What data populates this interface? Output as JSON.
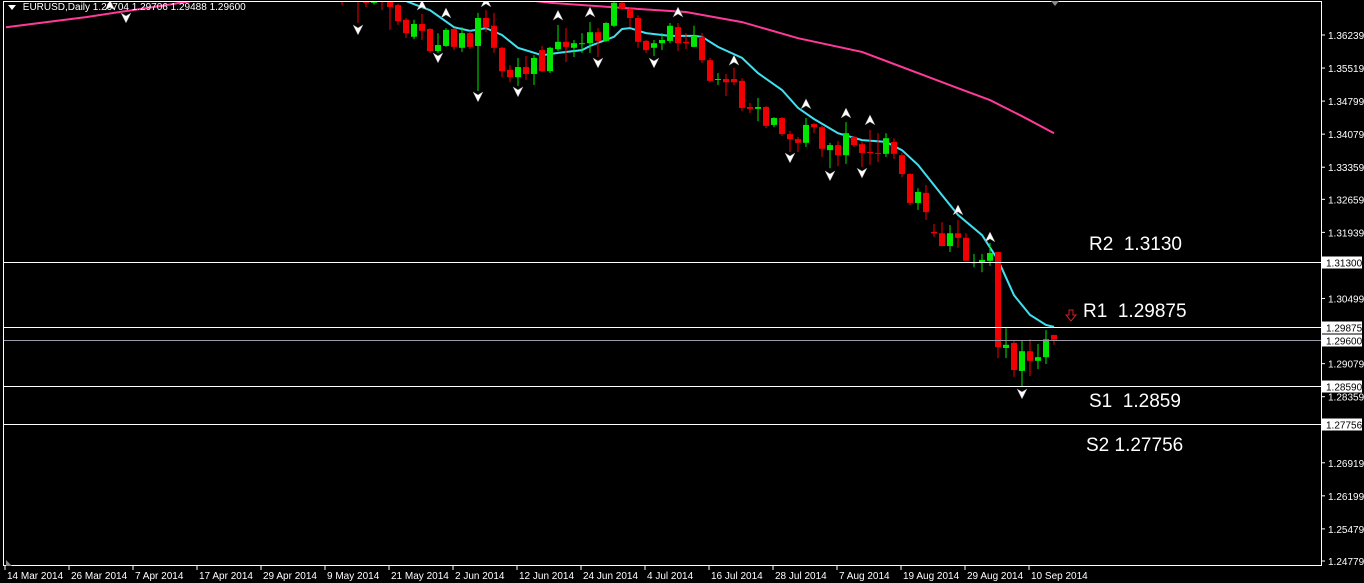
{
  "header": {
    "symbol": "EURUSD,Daily",
    "ohlc": "1.29704 1.29706 1.29488 1.29600"
  },
  "levels": [
    {
      "name": "R2",
      "label": "R2  1.3130",
      "price": 1.313,
      "badge": "1.31300",
      "color": "#ffffff"
    },
    {
      "name": "R1",
      "label": "R1  1.29875",
      "price": 1.29875,
      "badge": "1.29875",
      "color": "#ffffff"
    },
    {
      "name": "Bid",
      "label": "",
      "price": 1.296,
      "badge": "1.29600",
      "color": "#9a9aa8"
    },
    {
      "name": "S1",
      "label": "S1  1.2859",
      "price": 1.2859,
      "badge": "1.28590",
      "color": "#ffffff"
    },
    {
      "name": "S2",
      "label": "S2 1.27756",
      "price": 1.27756,
      "badge": "1.27756",
      "color": "#ffffff"
    }
  ],
  "colors": {
    "background": "#000000",
    "bull": "#00e600",
    "bear": "#f00000",
    "ma_slow": "#ff3a9a",
    "ma_fast": "#40e0f0",
    "fractal": "#ffffff",
    "signal_arrow": "#d02020"
  },
  "chart_data": {
    "type": "candlestick",
    "title": "EURUSD,Daily",
    "ylim": [
      1.245,
      1.37
    ],
    "grid": false,
    "y_ticks": [
      "1.36239",
      "1.35519",
      "1.34799",
      "1.34079",
      "1.33359",
      "1.32659",
      "1.31939",
      "1.30499",
      "1.29079",
      "1.28359",
      "1.26919",
      "1.26199",
      "1.25479",
      "1.24779"
    ],
    "x_ticks": [
      {
        "bar": 0,
        "label": "14 Mar 2014"
      },
      {
        "bar": 8,
        "label": "26 Mar 2014"
      },
      {
        "bar": 16,
        "label": "7 Apr 2014"
      },
      {
        "bar": 24,
        "label": "17 Apr 2014"
      },
      {
        "bar": 32,
        "label": "29 Apr 2014"
      },
      {
        "bar": 40,
        "label": "9 May 2014"
      },
      {
        "bar": 48,
        "label": "21 May 2014"
      },
      {
        "bar": 56,
        "label": "2 Jun 2014"
      },
      {
        "bar": 64,
        "label": "12 Jun 2014"
      },
      {
        "bar": 72,
        "label": "24 Jun 2014"
      },
      {
        "bar": 80,
        "label": "4 Jul 2014"
      },
      {
        "bar": 88,
        "label": "16 Jul 2014"
      },
      {
        "bar": 96,
        "label": "28 Jul 2014"
      },
      {
        "bar": 104,
        "label": "7 Aug 2014"
      },
      {
        "bar": 112,
        "label": "19 Aug 2014"
      },
      {
        "bar": 120,
        "label": "29 Aug 2014"
      },
      {
        "bar": 128,
        "label": "10 Sep 2014"
      }
    ],
    "candles_first_bar": 42,
    "candles": [
      [
        1.3725,
        1.374,
        1.3689,
        1.371
      ],
      [
        1.3712,
        1.3735,
        1.3705,
        1.372
      ],
      [
        1.3722,
        1.3735,
        1.365,
        1.3708
      ],
      [
        1.37,
        1.371,
        1.3685,
        1.3694
      ],
      [
        1.3694,
        1.3708,
        1.369,
        1.3702
      ],
      [
        1.3702,
        1.3715,
        1.3678,
        1.3698
      ],
      [
        1.3696,
        1.3705,
        1.3635,
        1.3685
      ],
      [
        1.3689,
        1.3692,
        1.3646,
        1.3654
      ],
      [
        1.3657,
        1.3661,
        1.3617,
        1.3628
      ],
      [
        1.362,
        1.3657,
        1.3615,
        1.3648
      ],
      [
        1.3648,
        1.367,
        1.3613,
        1.3633
      ],
      [
        1.3637,
        1.3639,
        1.3585,
        1.3589
      ],
      [
        1.3589,
        1.3628,
        1.3585,
        1.3602
      ],
      [
        1.36,
        1.3639,
        1.3598,
        1.3635
      ],
      [
        1.3637,
        1.3639,
        1.3591,
        1.3598
      ],
      [
        1.3596,
        1.3641,
        1.3587,
        1.3628
      ],
      [
        1.3628,
        1.3633,
        1.3593,
        1.3598
      ],
      [
        1.36,
        1.3672,
        1.3502,
        1.3661
      ],
      [
        1.3661,
        1.3678,
        1.363,
        1.3641
      ],
      [
        1.3644,
        1.3672,
        1.3585,
        1.3596
      ],
      [
        1.3596,
        1.3598,
        1.3532,
        1.3545
      ],
      [
        1.3548,
        1.3558,
        1.3521,
        1.3532
      ],
      [
        1.3532,
        1.3574,
        1.3513,
        1.3554
      ],
      [
        1.3554,
        1.3578,
        1.3526,
        1.3539
      ],
      [
        1.3539,
        1.358,
        1.3515,
        1.3574
      ],
      [
        1.3591,
        1.36,
        1.3543,
        1.3545
      ],
      [
        1.3545,
        1.3598,
        1.3541,
        1.3596
      ],
      [
        1.3593,
        1.3646,
        1.3589,
        1.3609
      ],
      [
        1.3609,
        1.3639,
        1.3565,
        1.3598
      ],
      [
        1.3596,
        1.3613,
        1.3576,
        1.3606
      ],
      [
        1.3604,
        1.3628,
        1.3585,
        1.3606
      ],
      [
        1.3606,
        1.3652,
        1.3585,
        1.363
      ],
      [
        1.363,
        1.3639,
        1.3576,
        1.3611
      ],
      [
        1.3611,
        1.3652,
        1.3609,
        1.365
      ],
      [
        1.3644,
        1.3696,
        1.3641,
        1.3694
      ],
      [
        1.3694,
        1.3698,
        1.3678,
        1.3681
      ],
      [
        1.3681,
        1.3685,
        1.3641,
        1.3661
      ],
      [
        1.3661,
        1.3667,
        1.3596,
        1.3609
      ],
      [
        1.3611,
        1.3613,
        1.3585,
        1.3591
      ],
      [
        1.3596,
        1.3613,
        1.3578,
        1.3606
      ],
      [
        1.3606,
        1.3628,
        1.3591,
        1.3613
      ],
      [
        1.3611,
        1.365,
        1.3606,
        1.3644
      ],
      [
        1.3641,
        1.365,
        1.3589,
        1.3606
      ],
      [
        1.3609,
        1.3628,
        1.3593,
        1.3606
      ],
      [
        1.3598,
        1.3644,
        1.3598,
        1.3622
      ],
      [
        1.362,
        1.3628,
        1.3563,
        1.3569
      ],
      [
        1.3569,
        1.3574,
        1.3521,
        1.3524
      ],
      [
        1.3526,
        1.3541,
        1.3515,
        1.3528
      ],
      [
        1.3528,
        1.3539,
        1.3491,
        1.3521
      ],
      [
        1.3528,
        1.3552,
        1.3515,
        1.3521
      ],
      [
        1.3524,
        1.353,
        1.3458,
        1.3465
      ],
      [
        1.3467,
        1.3476,
        1.3454,
        1.3463
      ],
      [
        1.3463,
        1.3487,
        1.3436,
        1.3467
      ],
      [
        1.3467,
        1.3469,
        1.3421,
        1.3426
      ],
      [
        1.3428,
        1.3445,
        1.3423,
        1.3443
      ],
      [
        1.3443,
        1.3445,
        1.3404,
        1.3408
      ],
      [
        1.3408,
        1.3415,
        1.3369,
        1.3397
      ],
      [
        1.3397,
        1.3402,
        1.3369,
        1.3389
      ],
      [
        1.3389,
        1.3443,
        1.338,
        1.3428
      ],
      [
        1.343,
        1.3432,
        1.341,
        1.3423
      ],
      [
        1.3423,
        1.3426,
        1.3358,
        1.3376
      ],
      [
        1.3373,
        1.3389,
        1.3334,
        1.3384
      ],
      [
        1.3384,
        1.3393,
        1.3338,
        1.3362
      ],
      [
        1.3362,
        1.3434,
        1.3343,
        1.341
      ],
      [
        1.3402,
        1.3404,
        1.338,
        1.3384
      ],
      [
        1.3386,
        1.3391,
        1.3336,
        1.3367
      ],
      [
        1.3369,
        1.3417,
        1.3341,
        1.3367
      ],
      [
        1.3367,
        1.341,
        1.3347,
        1.3365
      ],
      [
        1.3365,
        1.341,
        1.3358,
        1.3399
      ],
      [
        1.3391,
        1.3399,
        1.3354,
        1.3365
      ],
      [
        1.3362,
        1.3367,
        1.3314,
        1.3321
      ],
      [
        1.3321,
        1.3323,
        1.3253,
        1.3258
      ],
      [
        1.3258,
        1.329,
        1.3243,
        1.3282
      ],
      [
        1.328,
        1.3297,
        1.3221,
        1.3238
      ],
      [
        1.3195,
        1.3212,
        1.3184,
        1.3192
      ],
      [
        1.3192,
        1.3216,
        1.3164,
        1.3164
      ],
      [
        1.3164,
        1.321,
        1.3151,
        1.3192
      ],
      [
        1.3192,
        1.3221,
        1.316,
        1.3182
      ],
      [
        1.3182,
        1.3192,
        1.3132,
        1.3132
      ],
      [
        1.3127,
        1.3147,
        1.3118,
        1.3129
      ],
      [
        1.3127,
        1.3147,
        1.3107,
        1.3134
      ],
      [
        1.3132,
        1.3171,
        1.3121,
        1.3149
      ],
      [
        1.3151,
        1.3152,
        1.292,
        1.2944
      ],
      [
        1.2942,
        1.2985,
        1.292,
        1.2949
      ],
      [
        1.2953,
        1.2957,
        1.2879,
        1.2894
      ],
      [
        1.2892,
        1.2959,
        1.2859,
        1.2935
      ],
      [
        1.2935,
        1.2961,
        1.2881,
        1.2914
      ],
      [
        1.2914,
        1.2951,
        1.2896,
        1.2922
      ],
      [
        1.2922,
        1.2981,
        1.2907,
        1.2961
      ],
      [
        1.29704,
        1.29706,
        1.29488,
        1.296
      ]
    ],
    "ma_slow": [
      [
        0,
        1.3641
      ],
      [
        10,
        1.3663
      ],
      [
        20,
        1.3689
      ],
      [
        30,
        1.3717
      ],
      [
        45,
        1.3722
      ],
      [
        60,
        1.3711
      ],
      [
        68,
        1.3694
      ],
      [
        77,
        1.3683
      ],
      [
        85,
        1.3674
      ],
      [
        92,
        1.3652
      ],
      [
        99,
        1.3617
      ],
      [
        107,
        1.3587
      ],
      [
        114,
        1.3541
      ],
      [
        119,
        1.3508
      ],
      [
        123,
        1.3482
      ],
      [
        127,
        1.3447
      ],
      [
        131,
        1.341
      ]
    ],
    "ma_fast": [
      [
        48,
        1.3712
      ],
      [
        51,
        1.3691
      ],
      [
        53,
        1.3678
      ],
      [
        56,
        1.3641
      ],
      [
        58,
        1.3633
      ],
      [
        60,
        1.3639
      ],
      [
        62,
        1.3624
      ],
      [
        64,
        1.3596
      ],
      [
        67,
        1.358
      ],
      [
        69,
        1.3585
      ],
      [
        72,
        1.3591
      ],
      [
        73,
        1.36
      ],
      [
        76,
        1.362
      ],
      [
        77,
        1.3637
      ],
      [
        78,
        1.3639
      ],
      [
        80,
        1.3628
      ],
      [
        83,
        1.3622
      ],
      [
        86,
        1.3622
      ],
      [
        87,
        1.362
      ],
      [
        89,
        1.3598
      ],
      [
        92,
        1.3574
      ],
      [
        94,
        1.3541
      ],
      [
        97,
        1.3504
      ],
      [
        99,
        1.3465
      ],
      [
        101,
        1.3441
      ],
      [
        104,
        1.341
      ],
      [
        107,
        1.3395
      ],
      [
        110,
        1.3391
      ],
      [
        112,
        1.3373
      ],
      [
        114,
        1.3341
      ],
      [
        117,
        1.3275
      ],
      [
        119,
        1.3232
      ],
      [
        122,
        1.3188
      ],
      [
        124,
        1.3134
      ],
      [
        126,
        1.3057
      ],
      [
        128,
        1.3014
      ],
      [
        130,
        1.2992
      ],
      [
        131,
        1.2988
      ]
    ],
    "fractals_up": [
      [
        13,
        1.3689
      ],
      [
        52,
        1.3689
      ],
      [
        55,
        1.3672
      ],
      [
        60,
        1.3696
      ],
      [
        69,
        1.3667
      ],
      [
        73,
        1.3674
      ],
      [
        84,
        1.3674
      ],
      [
        91,
        1.3569
      ],
      [
        100,
        1.3474
      ],
      [
        105,
        1.3454
      ],
      [
        108,
        1.3439
      ],
      [
        119,
        1.3243
      ],
      [
        123,
        1.3184
      ]
    ],
    "fractals_down": [
      [
        15,
        1.3661
      ],
      [
        44,
        1.3635
      ],
      [
        54,
        1.3574
      ],
      [
        59,
        1.3489
      ],
      [
        64,
        1.35
      ],
      [
        74,
        1.3563
      ],
      [
        81,
        1.3563
      ],
      [
        98,
        1.3356
      ],
      [
        103,
        1.3317
      ],
      [
        107,
        1.3323
      ],
      [
        127,
        1.2842
      ]
    ],
    "sell_signal_bar": 133
  }
}
